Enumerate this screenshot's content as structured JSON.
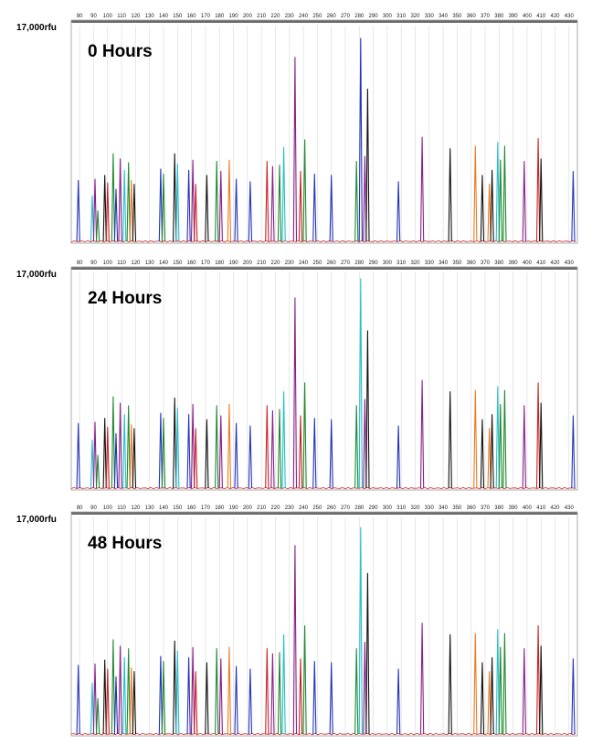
{
  "chart_data": {
    "type": "line",
    "ylabel": "17,000rfu",
    "x_ticks": [
      80,
      90,
      100,
      110,
      120,
      130,
      140,
      150,
      160,
      170,
      180,
      190,
      200,
      210,
      220,
      230,
      240,
      250,
      260,
      270,
      280,
      290,
      300,
      310,
      320,
      330,
      340,
      350,
      360,
      370,
      380,
      390,
      400,
      410,
      420,
      430
    ],
    "xlim": [
      74,
      436
    ],
    "ylim": [
      0,
      17000
    ],
    "grid": true,
    "legend": "none",
    "colors": {
      "blue": "#2233bb",
      "green": "#1f8a2f",
      "black": "#111111",
      "red": "#cc2222",
      "purple": "#8a1e8a",
      "cyan": "#22c0d0",
      "orange": "#ee7a1f"
    },
    "panels": [
      {
        "title": "0 Hours",
        "peaks": [
          {
            "x": 79,
            "h": 4800,
            "c": "blue"
          },
          {
            "x": 89,
            "h": 3600,
            "c": "cyan"
          },
          {
            "x": 91,
            "h": 4900,
            "c": "purple"
          },
          {
            "x": 93,
            "h": 2400,
            "c": "green"
          },
          {
            "x": 98,
            "h": 5200,
            "c": "black"
          },
          {
            "x": 100,
            "h": 4600,
            "c": "red"
          },
          {
            "x": 104,
            "h": 6900,
            "c": "green"
          },
          {
            "x": 106,
            "h": 4100,
            "c": "blue"
          },
          {
            "x": 109,
            "h": 6500,
            "c": "purple"
          },
          {
            "x": 112,
            "h": 5600,
            "c": "cyan"
          },
          {
            "x": 115,
            "h": 6200,
            "c": "green"
          },
          {
            "x": 117,
            "h": 4800,
            "c": "orange"
          },
          {
            "x": 119,
            "h": 4500,
            "c": "black"
          },
          {
            "x": 138,
            "h": 5700,
            "c": "blue"
          },
          {
            "x": 140,
            "h": 5300,
            "c": "green"
          },
          {
            "x": 148,
            "h": 6900,
            "c": "black"
          },
          {
            "x": 150,
            "h": 6100,
            "c": "cyan"
          },
          {
            "x": 158,
            "h": 5600,
            "c": "blue"
          },
          {
            "x": 161,
            "h": 6400,
            "c": "purple"
          },
          {
            "x": 163,
            "h": 4500,
            "c": "red"
          },
          {
            "x": 171,
            "h": 5200,
            "c": "black"
          },
          {
            "x": 178,
            "h": 6300,
            "c": "green"
          },
          {
            "x": 181,
            "h": 5500,
            "c": "purple"
          },
          {
            "x": 187,
            "h": 6400,
            "c": "orange"
          },
          {
            "x": 192,
            "h": 4900,
            "c": "blue"
          },
          {
            "x": 202,
            "h": 4700,
            "c": "blue"
          },
          {
            "x": 214,
            "h": 6300,
            "c": "red"
          },
          {
            "x": 218,
            "h": 5900,
            "c": "purple"
          },
          {
            "x": 223,
            "h": 6000,
            "c": "green"
          },
          {
            "x": 226,
            "h": 7400,
            "c": "cyan"
          },
          {
            "x": 234,
            "h": 14500,
            "c": "purple"
          },
          {
            "x": 238,
            "h": 5500,
            "c": "red"
          },
          {
            "x": 241,
            "h": 8000,
            "c": "green"
          },
          {
            "x": 248,
            "h": 5300,
            "c": "blue"
          },
          {
            "x": 260,
            "h": 5200,
            "c": "blue"
          },
          {
            "x": 278,
            "h": 6300,
            "c": "green"
          },
          {
            "x": 281,
            "h": 16000,
            "c": "blue"
          },
          {
            "x": 284,
            "h": 6700,
            "c": "purple"
          },
          {
            "x": 286,
            "h": 12000,
            "c": "black"
          },
          {
            "x": 308,
            "h": 4700,
            "c": "blue"
          },
          {
            "x": 325,
            "h": 8200,
            "c": "purple"
          },
          {
            "x": 345,
            "h": 7300,
            "c": "black"
          },
          {
            "x": 363,
            "h": 7500,
            "c": "orange"
          },
          {
            "x": 368,
            "h": 5200,
            "c": "black"
          },
          {
            "x": 373,
            "h": 4500,
            "c": "orange"
          },
          {
            "x": 375,
            "h": 5600,
            "c": "black"
          },
          {
            "x": 379,
            "h": 7800,
            "c": "cyan"
          },
          {
            "x": 381,
            "h": 6400,
            "c": "green"
          },
          {
            "x": 384,
            "h": 7500,
            "c": "green"
          },
          {
            "x": 398,
            "h": 6300,
            "c": "purple"
          },
          {
            "x": 408,
            "h": 8100,
            "c": "red"
          },
          {
            "x": 410,
            "h": 6500,
            "c": "black"
          },
          {
            "x": 433,
            "h": 5500,
            "c": "blue"
          }
        ]
      },
      {
        "title": "24 Hours",
        "peaks": [
          {
            "x": 79,
            "h": 5100,
            "c": "blue"
          },
          {
            "x": 89,
            "h": 3800,
            "c": "cyan"
          },
          {
            "x": 91,
            "h": 5200,
            "c": "purple"
          },
          {
            "x": 93,
            "h": 2600,
            "c": "green"
          },
          {
            "x": 98,
            "h": 5500,
            "c": "black"
          },
          {
            "x": 100,
            "h": 4800,
            "c": "red"
          },
          {
            "x": 104,
            "h": 7200,
            "c": "green"
          },
          {
            "x": 106,
            "h": 4300,
            "c": "blue"
          },
          {
            "x": 109,
            "h": 6700,
            "c": "purple"
          },
          {
            "x": 112,
            "h": 5800,
            "c": "cyan"
          },
          {
            "x": 115,
            "h": 6500,
            "c": "green"
          },
          {
            "x": 117,
            "h": 5000,
            "c": "orange"
          },
          {
            "x": 119,
            "h": 4700,
            "c": "black"
          },
          {
            "x": 138,
            "h": 5900,
            "c": "blue"
          },
          {
            "x": 140,
            "h": 5500,
            "c": "green"
          },
          {
            "x": 148,
            "h": 7100,
            "c": "black"
          },
          {
            "x": 150,
            "h": 6300,
            "c": "cyan"
          },
          {
            "x": 158,
            "h": 5800,
            "c": "blue"
          },
          {
            "x": 161,
            "h": 6600,
            "c": "purple"
          },
          {
            "x": 163,
            "h": 4700,
            "c": "red"
          },
          {
            "x": 171,
            "h": 5400,
            "c": "black"
          },
          {
            "x": 178,
            "h": 6500,
            "c": "green"
          },
          {
            "x": 181,
            "h": 5700,
            "c": "purple"
          },
          {
            "x": 187,
            "h": 6600,
            "c": "orange"
          },
          {
            "x": 192,
            "h": 5100,
            "c": "blue"
          },
          {
            "x": 202,
            "h": 4900,
            "c": "blue"
          },
          {
            "x": 214,
            "h": 6500,
            "c": "red"
          },
          {
            "x": 218,
            "h": 6100,
            "c": "purple"
          },
          {
            "x": 223,
            "h": 6200,
            "c": "green"
          },
          {
            "x": 226,
            "h": 7600,
            "c": "cyan"
          },
          {
            "x": 234,
            "h": 15000,
            "c": "purple"
          },
          {
            "x": 238,
            "h": 5700,
            "c": "red"
          },
          {
            "x": 241,
            "h": 8300,
            "c": "green"
          },
          {
            "x": 248,
            "h": 5500,
            "c": "blue"
          },
          {
            "x": 260,
            "h": 5400,
            "c": "blue"
          },
          {
            "x": 278,
            "h": 6500,
            "c": "green"
          },
          {
            "x": 281,
            "h": 16500,
            "c": "cyan"
          },
          {
            "x": 284,
            "h": 7000,
            "c": "purple"
          },
          {
            "x": 286,
            "h": 12400,
            "c": "black"
          },
          {
            "x": 308,
            "h": 4900,
            "c": "blue"
          },
          {
            "x": 325,
            "h": 8500,
            "c": "purple"
          },
          {
            "x": 345,
            "h": 7600,
            "c": "black"
          },
          {
            "x": 363,
            "h": 7700,
            "c": "orange"
          },
          {
            "x": 368,
            "h": 5400,
            "c": "black"
          },
          {
            "x": 373,
            "h": 4700,
            "c": "orange"
          },
          {
            "x": 375,
            "h": 5800,
            "c": "black"
          },
          {
            "x": 379,
            "h": 8000,
            "c": "cyan"
          },
          {
            "x": 381,
            "h": 6600,
            "c": "green"
          },
          {
            "x": 384,
            "h": 7700,
            "c": "green"
          },
          {
            "x": 398,
            "h": 6500,
            "c": "purple"
          },
          {
            "x": 408,
            "h": 8300,
            "c": "red"
          },
          {
            "x": 410,
            "h": 6700,
            "c": "black"
          },
          {
            "x": 433,
            "h": 5700,
            "c": "blue"
          }
        ]
      },
      {
        "title": "48 Hours",
        "peaks": [
          {
            "x": 79,
            "h": 5400,
            "c": "blue"
          },
          {
            "x": 89,
            "h": 4000,
            "c": "cyan"
          },
          {
            "x": 91,
            "h": 5500,
            "c": "purple"
          },
          {
            "x": 93,
            "h": 2800,
            "c": "green"
          },
          {
            "x": 98,
            "h": 5800,
            "c": "black"
          },
          {
            "x": 100,
            "h": 5100,
            "c": "red"
          },
          {
            "x": 104,
            "h": 7400,
            "c": "green"
          },
          {
            "x": 106,
            "h": 4500,
            "c": "blue"
          },
          {
            "x": 109,
            "h": 6900,
            "c": "purple"
          },
          {
            "x": 112,
            "h": 6000,
            "c": "cyan"
          },
          {
            "x": 115,
            "h": 6700,
            "c": "green"
          },
          {
            "x": 117,
            "h": 5200,
            "c": "orange"
          },
          {
            "x": 119,
            "h": 4900,
            "c": "black"
          },
          {
            "x": 138,
            "h": 6100,
            "c": "blue"
          },
          {
            "x": 140,
            "h": 5700,
            "c": "green"
          },
          {
            "x": 148,
            "h": 7300,
            "c": "black"
          },
          {
            "x": 150,
            "h": 6500,
            "c": "cyan"
          },
          {
            "x": 158,
            "h": 6000,
            "c": "blue"
          },
          {
            "x": 161,
            "h": 6800,
            "c": "purple"
          },
          {
            "x": 163,
            "h": 4900,
            "c": "red"
          },
          {
            "x": 171,
            "h": 5600,
            "c": "black"
          },
          {
            "x": 178,
            "h": 6700,
            "c": "green"
          },
          {
            "x": 181,
            "h": 5900,
            "c": "purple"
          },
          {
            "x": 187,
            "h": 6800,
            "c": "orange"
          },
          {
            "x": 192,
            "h": 5300,
            "c": "blue"
          },
          {
            "x": 202,
            "h": 5100,
            "c": "blue"
          },
          {
            "x": 214,
            "h": 6700,
            "c": "red"
          },
          {
            "x": 218,
            "h": 6300,
            "c": "purple"
          },
          {
            "x": 223,
            "h": 6400,
            "c": "green"
          },
          {
            "x": 226,
            "h": 7800,
            "c": "cyan"
          },
          {
            "x": 234,
            "h": 14800,
            "c": "purple"
          },
          {
            "x": 238,
            "h": 5900,
            "c": "red"
          },
          {
            "x": 241,
            "h": 8500,
            "c": "green"
          },
          {
            "x": 248,
            "h": 5700,
            "c": "blue"
          },
          {
            "x": 260,
            "h": 5600,
            "c": "blue"
          },
          {
            "x": 278,
            "h": 6700,
            "c": "green"
          },
          {
            "x": 281,
            "h": 16200,
            "c": "cyan"
          },
          {
            "x": 284,
            "h": 7200,
            "c": "purple"
          },
          {
            "x": 286,
            "h": 12600,
            "c": "black"
          },
          {
            "x": 308,
            "h": 5100,
            "c": "blue"
          },
          {
            "x": 325,
            "h": 8700,
            "c": "purple"
          },
          {
            "x": 345,
            "h": 7800,
            "c": "black"
          },
          {
            "x": 363,
            "h": 7900,
            "c": "orange"
          },
          {
            "x": 368,
            "h": 5600,
            "c": "black"
          },
          {
            "x": 373,
            "h": 4900,
            "c": "orange"
          },
          {
            "x": 375,
            "h": 6000,
            "c": "black"
          },
          {
            "x": 379,
            "h": 8200,
            "c": "cyan"
          },
          {
            "x": 381,
            "h": 6800,
            "c": "green"
          },
          {
            "x": 384,
            "h": 7900,
            "c": "green"
          },
          {
            "x": 398,
            "h": 6700,
            "c": "purple"
          },
          {
            "x": 408,
            "h": 8500,
            "c": "red"
          },
          {
            "x": 410,
            "h": 6900,
            "c": "black"
          },
          {
            "x": 433,
            "h": 5900,
            "c": "blue"
          }
        ]
      }
    ]
  }
}
